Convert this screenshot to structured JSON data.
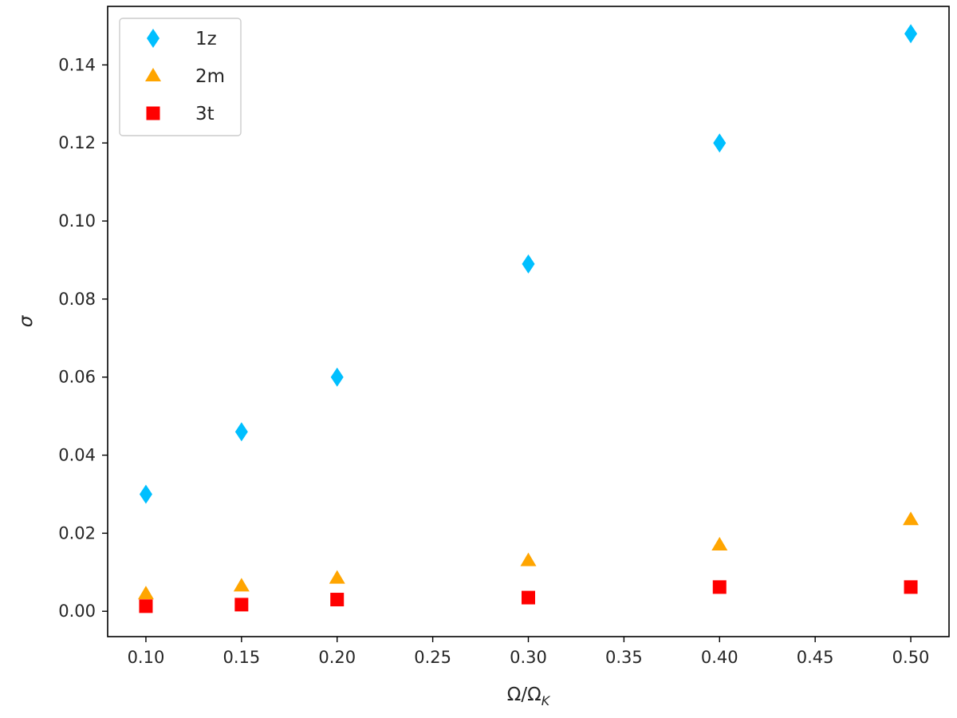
{
  "chart_data": {
    "type": "scatter",
    "xlabel": "Ω/Ω",
    "xlabel_sub": "K",
    "ylabel": "σ",
    "xlim": [
      0.08,
      0.52
    ],
    "ylim": [
      -0.0065,
      0.155
    ],
    "xticks": [
      0.1,
      0.15,
      0.2,
      0.25,
      0.3,
      0.35,
      0.4,
      0.45,
      0.5
    ],
    "xtick_labels": [
      "0.10",
      "0.15",
      "0.20",
      "0.25",
      "0.30",
      "0.35",
      "0.40",
      "0.45",
      "0.50"
    ],
    "yticks": [
      0.0,
      0.02,
      0.04,
      0.06,
      0.08,
      0.1,
      0.12,
      0.14
    ],
    "ytick_labels": [
      "0.00",
      "0.02",
      "0.04",
      "0.06",
      "0.08",
      "0.10",
      "0.12",
      "0.14"
    ],
    "grid": false,
    "legend_position": "top-left",
    "series": [
      {
        "name": "1z",
        "marker": "diamond",
        "color": "#00BFFF",
        "x": [
          0.1,
          0.15,
          0.2,
          0.3,
          0.4,
          0.5
        ],
        "y": [
          0.03,
          0.046,
          0.06,
          0.089,
          0.12,
          0.148
        ]
      },
      {
        "name": "2m",
        "marker": "triangle",
        "color": "#FFA500",
        "x": [
          0.1,
          0.15,
          0.2,
          0.3,
          0.4,
          0.5
        ],
        "y": [
          0.0045,
          0.0065,
          0.0085,
          0.013,
          0.017,
          0.0235
        ]
      },
      {
        "name": "3t",
        "marker": "square",
        "color": "#FF0000",
        "x": [
          0.1,
          0.15,
          0.2,
          0.3,
          0.4,
          0.5
        ],
        "y": [
          0.0013,
          0.0017,
          0.003,
          0.0035,
          0.0062,
          0.0062
        ]
      }
    ]
  }
}
